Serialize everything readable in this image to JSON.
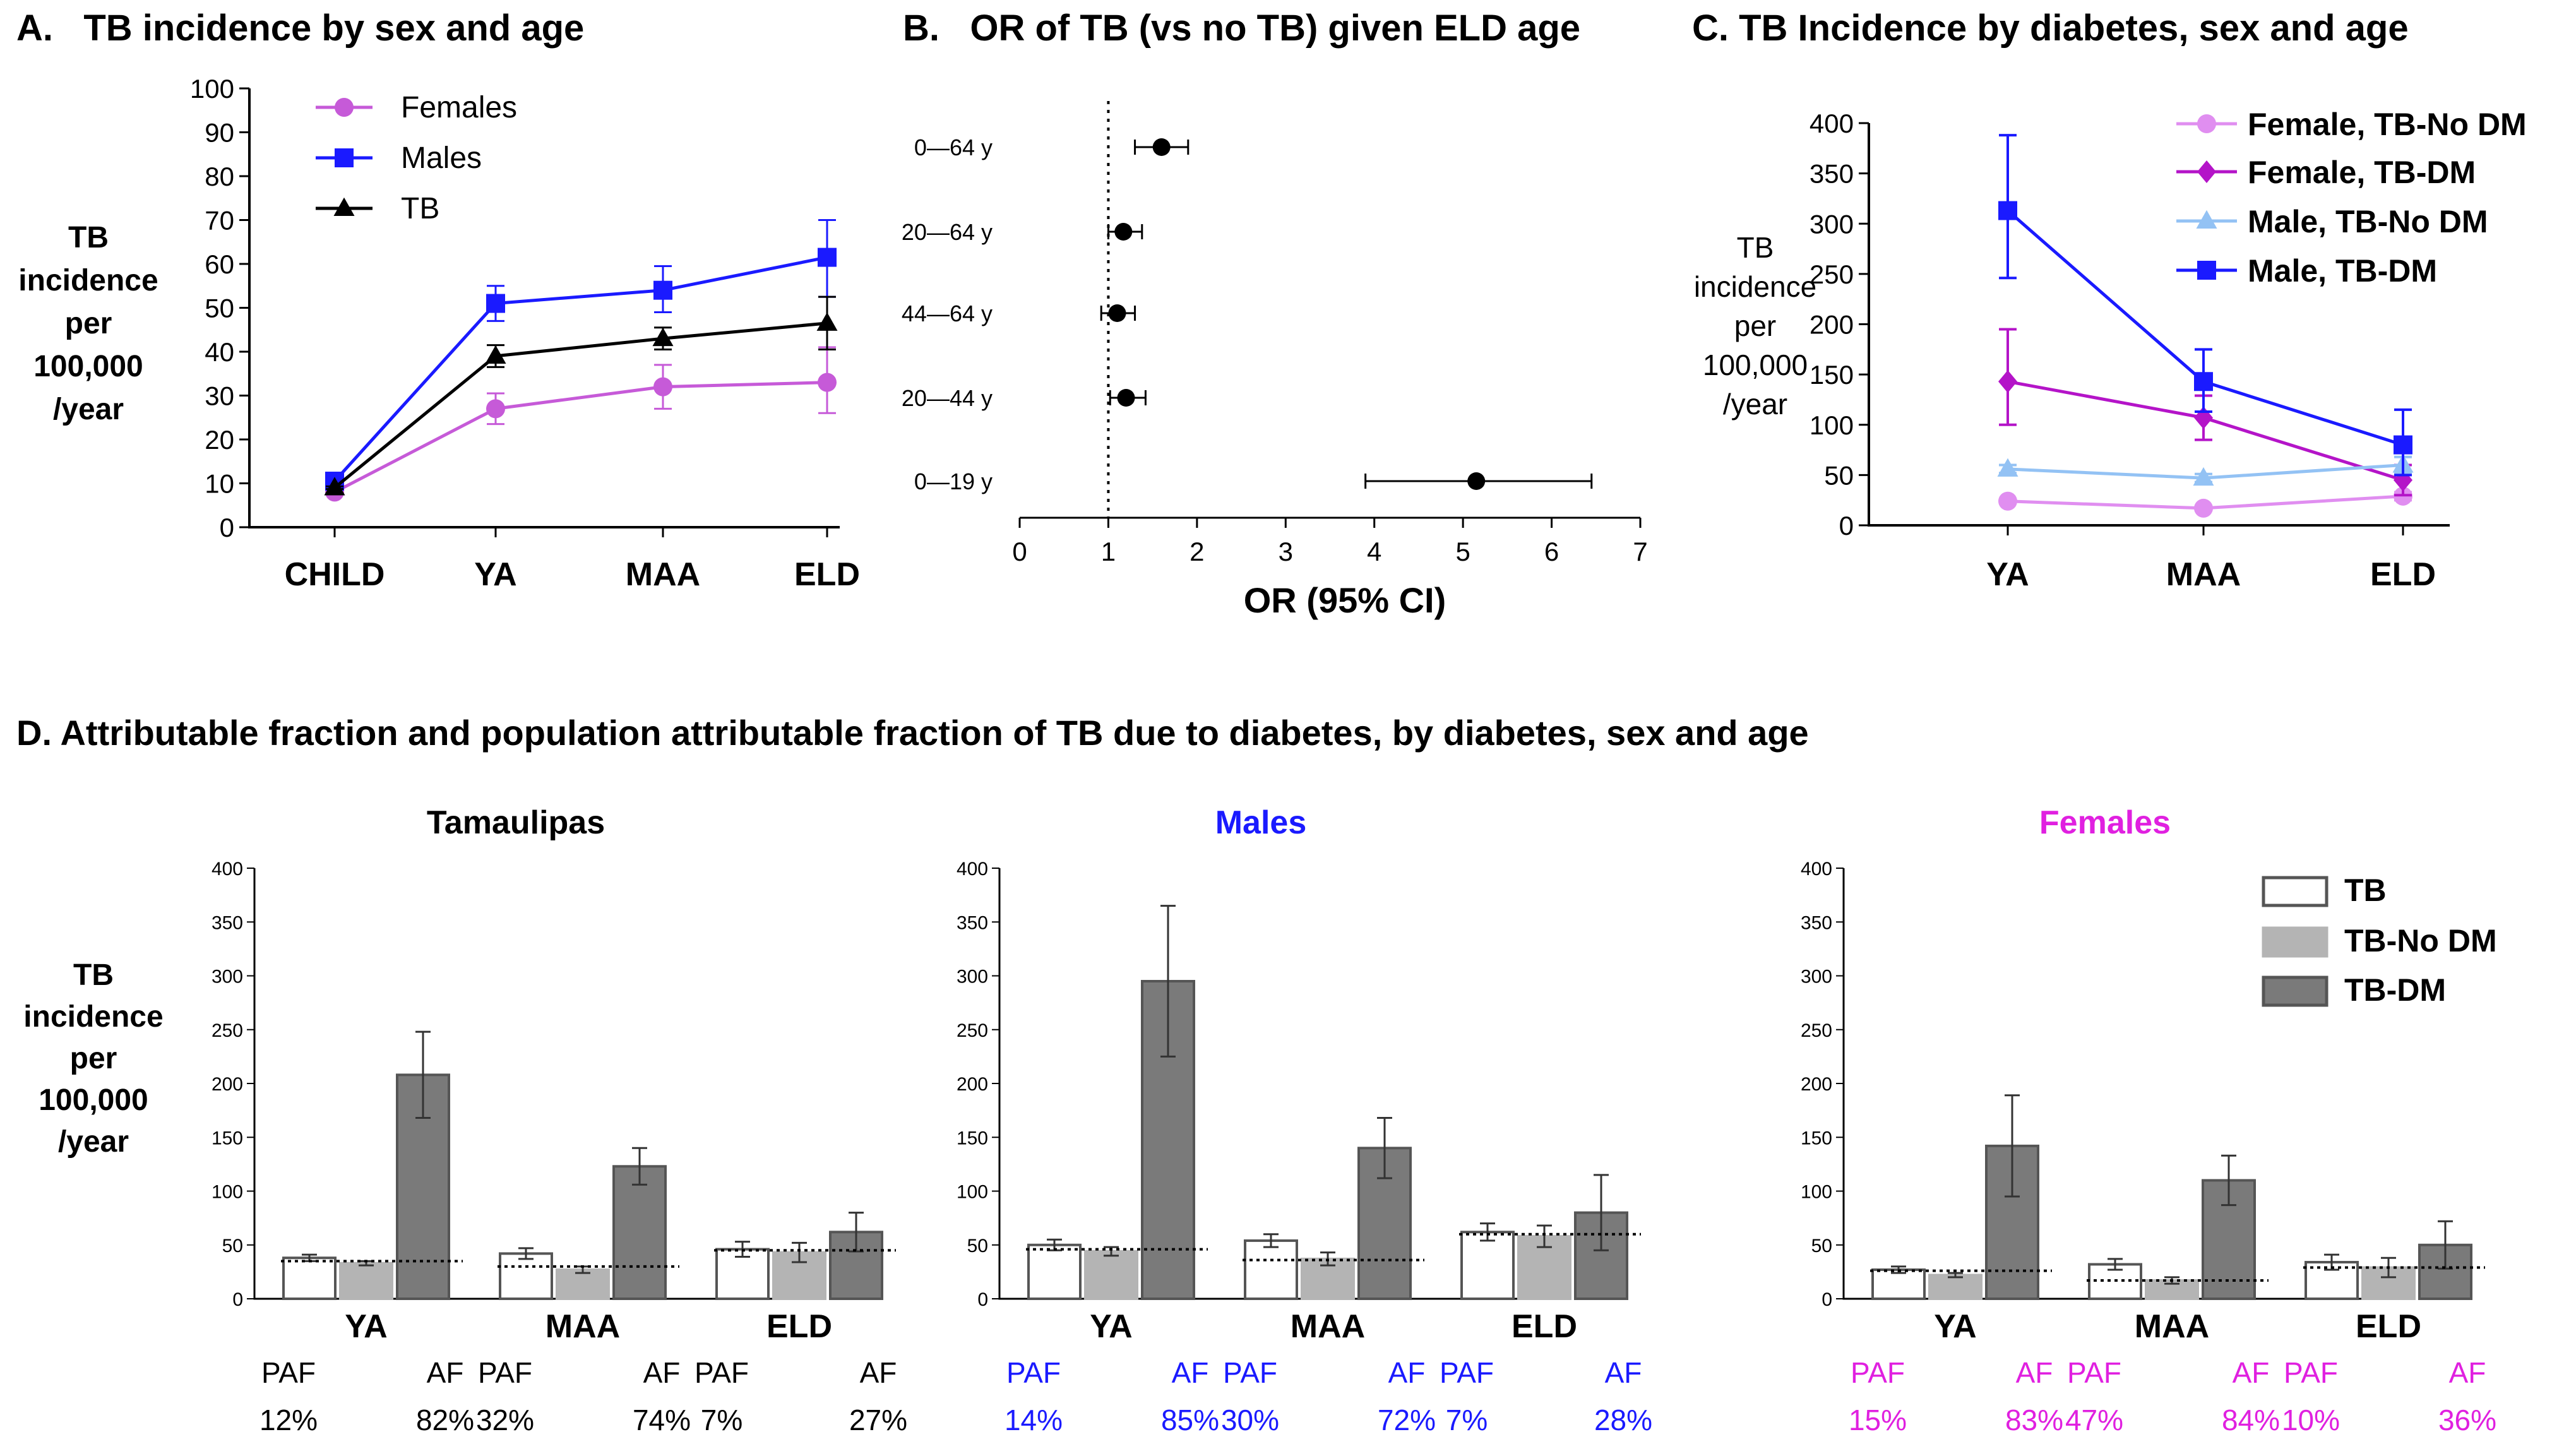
{
  "chart_data": [
    {
      "panel": "A",
      "type": "line",
      "title": "A.   TB incidence by sex and age",
      "ylabel_lines": [
        "TB",
        "incidence",
        "per",
        "100,000",
        "/year"
      ],
      "categories": [
        "CHILD",
        "YA",
        "MAA",
        "ELD"
      ],
      "ylim": [
        0,
        100
      ],
      "yticks": [
        0,
        10,
        20,
        30,
        40,
        50,
        60,
        70,
        80,
        90,
        100
      ],
      "legend_position": "top-left",
      "series": [
        {
          "name": "Females",
          "color": "#c65ad8",
          "marker": "circle",
          "values": [
            8,
            27,
            32,
            33
          ],
          "err_low": [
            0.5,
            3.5,
            5,
            7
          ],
          "err_high": [
            0.5,
            3.5,
            5,
            8
          ]
        },
        {
          "name": "Males",
          "color": "#1a1aff",
          "marker": "square",
          "values": [
            10.5,
            51,
            54,
            61.5
          ],
          "err_low": [
            0.7,
            4,
            5,
            9
          ],
          "err_high": [
            0.7,
            4,
            5.5,
            8.5
          ]
        },
        {
          "name": "TB",
          "color": "#000000",
          "marker": "triangle",
          "values": [
            9,
            39,
            43,
            46.5
          ],
          "err_low": [
            0.3,
            2.5,
            2.5,
            6
          ],
          "err_high": [
            0.3,
            2.5,
            2.5,
            6
          ]
        }
      ]
    },
    {
      "panel": "B",
      "type": "scatter",
      "title": "B.   OR of TB (vs no TB) given ELD age",
      "xlabel": "OR (95% CI)",
      "xlim": [
        0,
        7
      ],
      "xticks": [
        0,
        1,
        2,
        3,
        4,
        5,
        6,
        7
      ],
      "reference_line": 1,
      "categories": [
        "0—64 y",
        "20—64 y",
        "44—64 y",
        "20—44 y",
        "0—19 y"
      ],
      "values": [
        1.6,
        1.17,
        1.1,
        1.2,
        5.15
      ],
      "ci_low": [
        1.3,
        1.0,
        0.92,
        1.02,
        3.9
      ],
      "ci_high": [
        1.9,
        1.38,
        1.3,
        1.42,
        6.45
      ]
    },
    {
      "panel": "C",
      "type": "line",
      "title": "C. TB Incidence by diabetes, sex and age",
      "ylabel_lines": [
        "TB",
        "incidence",
        "per",
        "100,000",
        "/year"
      ],
      "categories": [
        "YA",
        "MAA",
        "ELD"
      ],
      "ylim": [
        0,
        400
      ],
      "yticks": [
        0,
        50,
        100,
        150,
        200,
        250,
        300,
        350,
        400
      ],
      "legend_position": "top-right",
      "series": [
        {
          "name": "Female, TB-No DM",
          "color": "#e08ef0",
          "marker": "circle",
          "values": [
            24,
            17,
            29
          ],
          "err_low": [
            2,
            2,
            4
          ],
          "err_high": [
            2,
            2,
            4
          ]
        },
        {
          "name": "Female, TB-DM",
          "color": "#b414c8",
          "marker": "diamond",
          "values": [
            143,
            107,
            45
          ],
          "err_low": [
            43,
            22,
            15
          ],
          "err_high": [
            52,
            22,
            15
          ]
        },
        {
          "name": "Male, TB-No DM",
          "color": "#93c2f4",
          "marker": "triangle",
          "values": [
            56,
            47,
            60
          ],
          "err_low": [
            4,
            4,
            8
          ],
          "err_high": [
            4,
            4,
            8
          ]
        },
        {
          "name": "Male, TB-DM",
          "color": "#1a1aff",
          "marker": "square",
          "values": [
            313,
            143,
            80
          ],
          "err_low": [
            67,
            30,
            30
          ],
          "err_high": [
            75,
            32,
            35
          ]
        }
      ]
    },
    {
      "panel": "D",
      "type": "bar",
      "title": "D. Attributable fraction and population attributable fraction of TB due to diabetes, by diabetes, sex and age",
      "ylabel_lines": [
        "TB",
        "incidence",
        "per",
        "100,000",
        "/year"
      ],
      "ylim": [
        0,
        400
      ],
      "yticks": [
        0,
        50,
        100,
        150,
        200,
        250,
        300,
        350,
        400
      ],
      "legend": [
        "TB",
        "TB-No DM",
        "TB-DM"
      ],
      "legend_colors": [
        "#ffffff",
        "#b4b4b4",
        "#7a7a7a"
      ],
      "legend_strokes": [
        "#555555",
        "#b4b4b4",
        "#555555"
      ],
      "legend_position": "top-right",
      "categories": [
        "YA",
        "MAA",
        "ELD"
      ],
      "panels": [
        {
          "title": "Tamaulipas",
          "color": "#000000",
          "series": [
            {
              "name": "TB",
              "values": [
                38,
                42,
                46
              ],
              "err": [
                3,
                5,
                7
              ]
            },
            {
              "name": "TB-No DM",
              "values": [
                33,
                27,
                43
              ],
              "err": [
                2,
                3,
                9
              ]
            },
            {
              "name": "TB-DM",
              "values": [
                208,
                123,
                62
              ],
              "err": [
                40,
                17,
                18
              ]
            }
          ],
          "ref_lines": [
            35,
            30,
            45
          ],
          "paf_label": "PAF",
          "af_label": "AF",
          "paf": [
            "12%",
            "32%",
            "7%"
          ],
          "af": [
            "82%",
            "74%",
            "27%"
          ]
        },
        {
          "title": "Males",
          "color": "#1a1aff",
          "series": [
            {
              "name": "TB",
              "values": [
                50,
                54,
                62
              ],
              "err": [
                5,
                6,
                8
              ]
            },
            {
              "name": "TB-No DM",
              "values": [
                44,
                37,
                58
              ],
              "err": [
                4,
                6,
                10
              ]
            },
            {
              "name": "TB-DM",
              "values": [
                295,
                140,
                80
              ],
              "err": [
                70,
                28,
                35
              ]
            }
          ],
          "ref_lines": [
            46,
            36,
            60
          ],
          "paf_label": "PAF",
          "af_label": "AF",
          "paf": [
            "14%",
            "30%",
            "7%"
          ],
          "af": [
            "85%",
            "72%",
            "28%"
          ]
        },
        {
          "title": "Females",
          "color": "#e020e0",
          "series": [
            {
              "name": "TB",
              "values": [
                27,
                32,
                34
              ],
              "err": [
                3,
                5,
                7
              ]
            },
            {
              "name": "TB-No DM",
              "values": [
                22,
                17,
                29
              ],
              "err": [
                2,
                3,
                9
              ]
            },
            {
              "name": "TB-DM",
              "values": [
                142,
                110,
                50
              ],
              "err": [
                47,
                23,
                22
              ]
            }
          ],
          "ref_lines": [
            26,
            17,
            29
          ],
          "paf_label": "PAF",
          "af_label": "AF",
          "paf": [
            "15%",
            "47%",
            "10%"
          ],
          "af": [
            "83%",
            "84%",
            "36%"
          ]
        }
      ]
    }
  ]
}
